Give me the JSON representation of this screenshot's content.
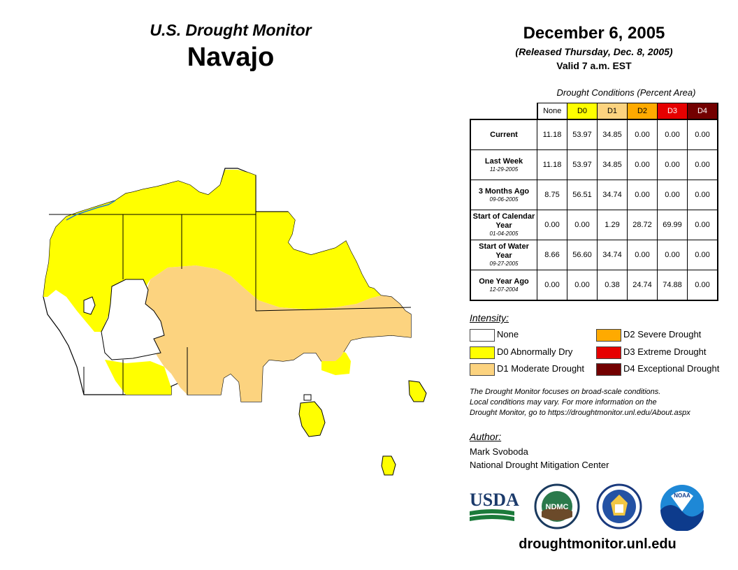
{
  "header": {
    "subtitle": "U.S. Drought Monitor",
    "region": "Navajo",
    "date": "December 6, 2005",
    "released": "(Released Thursday, Dec. 8, 2005)",
    "valid": "Valid 7 a.m. EST"
  },
  "table": {
    "title": "Drought Conditions (Percent Area)",
    "columns": [
      {
        "label": "None",
        "color": "#ffffff"
      },
      {
        "label": "D0",
        "color": "#ffff00"
      },
      {
        "label": "D1",
        "color": "#fcd37f"
      },
      {
        "label": "D2",
        "color": "#ffaa00"
      },
      {
        "label": "D3",
        "color": "#e60000"
      },
      {
        "label": "D4",
        "color": "#730000"
      }
    ],
    "rows": [
      {
        "label": "Current",
        "date": "",
        "values": [
          "11.18",
          "53.97",
          "34.85",
          "0.00",
          "0.00",
          "0.00"
        ]
      },
      {
        "label": "Last Week",
        "date": "11-29-2005",
        "values": [
          "11.18",
          "53.97",
          "34.85",
          "0.00",
          "0.00",
          "0.00"
        ]
      },
      {
        "label": "3 Months Ago",
        "date": "09-06-2005",
        "values": [
          "8.75",
          "56.51",
          "34.74",
          "0.00",
          "0.00",
          "0.00"
        ]
      },
      {
        "label": "Start of Calendar Year",
        "date": "01-04-2005",
        "values": [
          "0.00",
          "0.00",
          "1.29",
          "28.72",
          "69.99",
          "0.00"
        ]
      },
      {
        "label": "Start of Water Year",
        "date": "09-27-2005",
        "values": [
          "8.66",
          "56.60",
          "34.74",
          "0.00",
          "0.00",
          "0.00"
        ]
      },
      {
        "label": "One Year Ago",
        "date": "12-07-2004",
        "values": [
          "0.00",
          "0.00",
          "0.38",
          "24.74",
          "74.88",
          "0.00"
        ]
      }
    ]
  },
  "legend": {
    "title": "Intensity:",
    "items": [
      {
        "label": "None",
        "color": "#ffffff"
      },
      {
        "label": "D0 Abnormally Dry",
        "color": "#ffff00"
      },
      {
        "label": "D1 Moderate Drought",
        "color": "#fcd37f"
      },
      {
        "label": "D2 Severe Drought",
        "color": "#ffaa00"
      },
      {
        "label": "D3 Extreme Drought",
        "color": "#e60000"
      },
      {
        "label": "D4 Exceptional Drought",
        "color": "#730000"
      }
    ]
  },
  "note": {
    "line1": "The Drought Monitor focuses on broad-scale conditions.",
    "line2": "Local conditions may vary. For more information on the",
    "line3": "Drought Monitor, go to https://droughtmonitor.unl.edu/About.aspx"
  },
  "author": {
    "title": "Author:",
    "name": "Mark Svoboda",
    "org": "National Drought Mitigation Center"
  },
  "logos": {
    "usda": "USDA",
    "ndmc": "NDMC",
    "noaa": "NOAA"
  },
  "website": "droughtmonitor.unl.edu"
}
